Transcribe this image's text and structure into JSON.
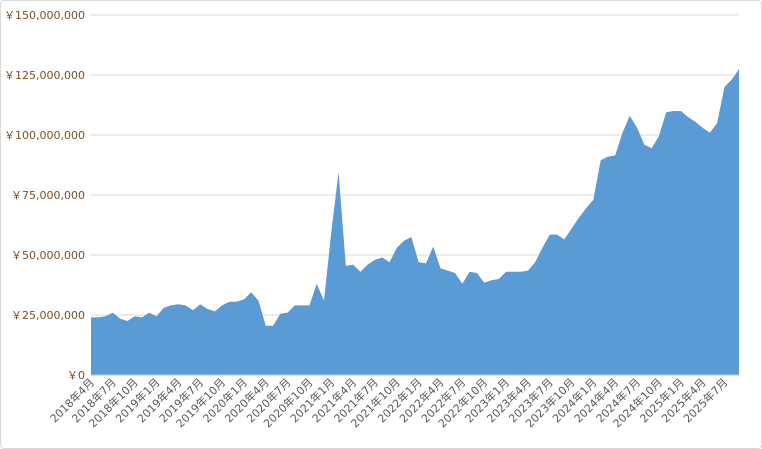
{
  "chart_data": {
    "type": "area",
    "color": "#5b9bd5",
    "grid": true,
    "categories": [
      "2018年4月",
      null,
      null,
      "2018年7月",
      null,
      null,
      "2018年10月",
      null,
      null,
      "2019年1月",
      null,
      null,
      "2019年4月",
      null,
      null,
      "2019年7月",
      null,
      null,
      "2019年10月",
      null,
      null,
      "2020年1月",
      null,
      null,
      "2020年4月",
      null,
      null,
      "2020年7月",
      null,
      null,
      "2020年10月",
      null,
      null,
      "2021年1月",
      null,
      null,
      "2021年4月",
      null,
      null,
      "2021年7月",
      null,
      null,
      "2021年10月",
      null,
      null,
      "2022年1月",
      null,
      null,
      "2022年4月",
      null,
      null,
      "2022年7月",
      null,
      null,
      "2022年10月",
      null,
      null,
      "2023年1月",
      null,
      null,
      "2023年4月",
      null,
      null,
      "2023年7月",
      null,
      null,
      "2023年10月",
      null,
      null,
      "2024年1月",
      null,
      null,
      "2024年4月",
      null,
      null,
      "2024年7月",
      null,
      null,
      "2024年10月",
      null,
      null,
      "2025年1月",
      null,
      null,
      "2025年4月",
      null,
      null,
      "2025年7月",
      null,
      null
    ],
    "values": [
      24000000,
      24000000,
      24500000,
      26000000,
      23500000,
      22500000,
      24500000,
      24000000,
      26000000,
      24500000,
      28000000,
      29000000,
      29500000,
      29000000,
      27000000,
      29500000,
      27500000,
      26500000,
      29000000,
      30500000,
      30500000,
      31500000,
      34500000,
      31000000,
      20500000,
      20500000,
      25500000,
      26000000,
      29000000,
      29000000,
      29000000,
      38000000,
      31000000,
      59500000,
      84500000,
      45500000,
      46000000,
      43000000,
      46000000,
      48000000,
      49000000,
      47000000,
      53000000,
      56000000,
      57500000,
      47000000,
      46500000,
      53500000,
      44500000,
      43500000,
      42500000,
      38000000,
      43000000,
      42500000,
      38500000,
      39500000,
      40000000,
      43000000,
      43000000,
      43000000,
      43500000,
      47000000,
      53000000,
      58500000,
      58500000,
      56500000,
      61000000,
      65500000,
      69500000,
      73000000,
      89500000,
      91000000,
      91500000,
      101000000,
      108000000,
      103000000,
      96000000,
      94500000,
      99500000,
      109500000,
      110000000,
      110000000,
      107500000,
      105500000,
      103000000,
      101000000,
      105000000,
      120000000,
      123000000,
      127500000
    ],
    "ylim": [
      0,
      150000000
    ],
    "yticks": [
      {
        "value": 0,
        "label": "￥0"
      },
      {
        "value": 25000000,
        "label": "￥25,000,000"
      },
      {
        "value": 50000000,
        "label": "￥50,000,000"
      },
      {
        "value": 75000000,
        "label": "￥75,000,000"
      },
      {
        "value": 100000000,
        "label": "￥100,000,000"
      },
      {
        "value": 125000000,
        "label": "￥125,000,000"
      },
      {
        "value": 150000000,
        "label": "￥150,000,000"
      }
    ]
  }
}
